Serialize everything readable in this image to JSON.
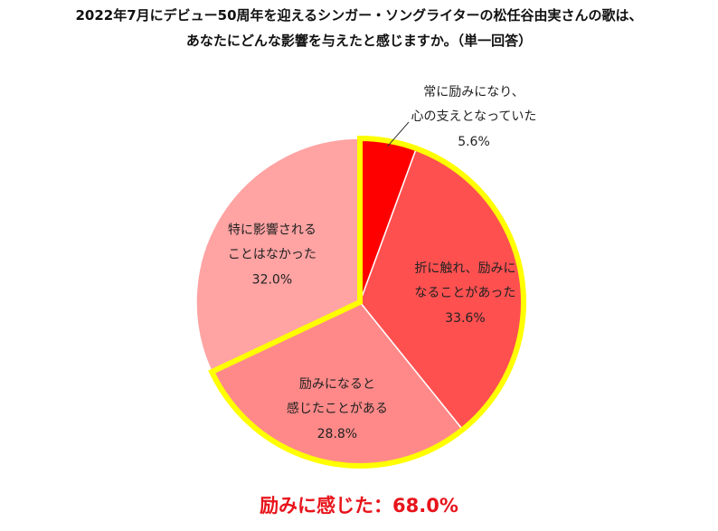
{
  "title_line1": "2022年7月にデビュー50周年を迎えるシンガー・ソングライターの松任谷由実さんの歌は、",
  "title_line2": "あなたにどんな影響を与えたと感じますか。（単一回答）",
  "summary": "励みに感じた：68.0%",
  "chart_data": {
    "type": "pie",
    "slices": [
      {
        "label_lines": [
          "常に励みになり、",
          "心の支えとなっていた"
        ],
        "pct_text": "5.6%",
        "value": 5.6,
        "color": "#ff0000",
        "highlight": true
      },
      {
        "label_lines": [
          "折に触れ、励みに",
          "なることがあった"
        ],
        "pct_text": "33.6%",
        "value": 33.6,
        "color": "#ff5050",
        "highlight": true
      },
      {
        "label_lines": [
          "励みになると",
          "感じたことがある"
        ],
        "pct_text": "28.8%",
        "value": 28.8,
        "color": "#ff8989",
        "highlight": true
      },
      {
        "label_lines": [
          "特に影響される",
          "ことはなかった"
        ],
        "pct_text": "32.0%",
        "value": 32.0,
        "color": "#ffa3a3",
        "highlight": false
      }
    ],
    "highlight_color": "#ffff00"
  }
}
